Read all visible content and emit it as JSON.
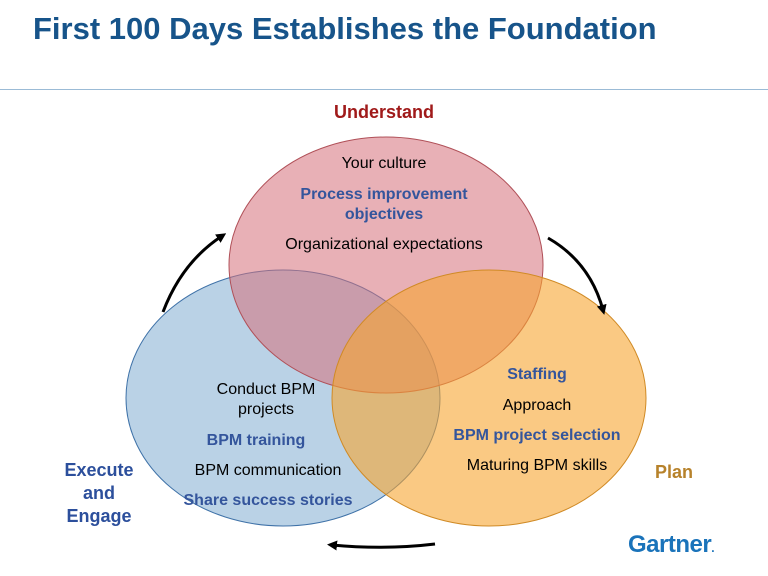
{
  "title": "First 100 Days Establishes the Foundation",
  "colors": {
    "title": "#17548a",
    "understand": "#a01a1a",
    "plan": "#b7822b",
    "execute": "#2c4f9c",
    "blue_text": "#34559c",
    "understand_fill": "#e19a9f",
    "plan_fill": "#f9b650",
    "execute_fill": "#8cb4d6"
  },
  "labels": {
    "understand": "Understand",
    "plan": "Plan",
    "execute": "Execute\nand\nEngage"
  },
  "understand_items": [
    "Your culture",
    "Process improvement\nobjectives",
    "Organizational expectations"
  ],
  "plan_items": [
    "Staffing",
    "Approach",
    "BPM project selection",
    "Maturing BPM skills"
  ],
  "execute_items": [
    "Conduct BPM\nprojects",
    "BPM training",
    "BPM communication",
    "Share success stories"
  ],
  "logo": {
    "text": "Gartner",
    "dot": "."
  }
}
